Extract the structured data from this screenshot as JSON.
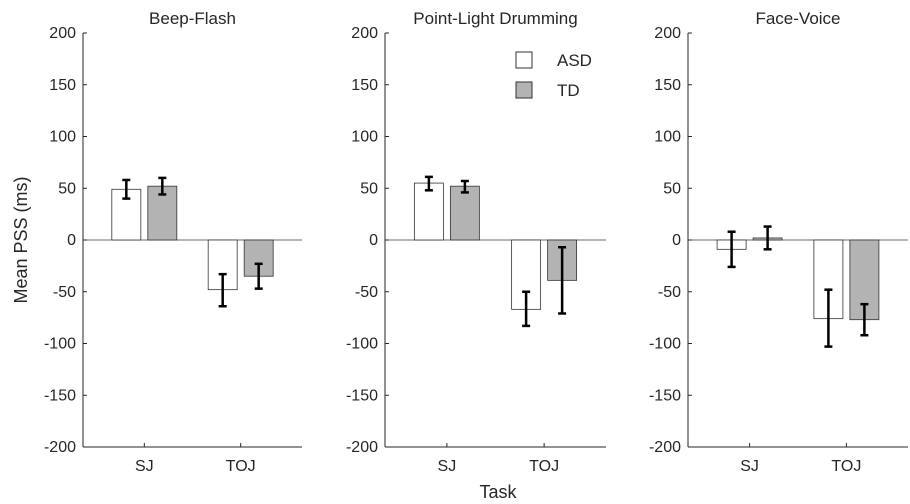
{
  "chart_data": {
    "type": "bar",
    "ylabel": "Mean PSS (ms)",
    "xlabel": "Task",
    "ylim": [
      -200,
      200
    ],
    "yticks": [
      -200,
      -150,
      -100,
      -50,
      0,
      50,
      100,
      150,
      200
    ],
    "categories": [
      "SJ",
      "TOJ"
    ],
    "legend": {
      "placement": "top-right of middle panel",
      "entries": [
        {
          "name": "ASD",
          "color": "#ffffff"
        },
        {
          "name": "TD",
          "color": "#b3b3b3"
        }
      ]
    },
    "panels": [
      {
        "title": "Beep-Flash",
        "series": [
          {
            "name": "ASD",
            "values": [
              49,
              -48
            ],
            "error_low": [
              40,
              -64
            ],
            "error_high": [
              58,
              -33
            ]
          },
          {
            "name": "TD",
            "values": [
              52,
              -35
            ],
            "error_low": [
              44,
              -47
            ],
            "error_high": [
              60,
              -23
            ]
          }
        ]
      },
      {
        "title": "Point-Light Drumming",
        "series": [
          {
            "name": "ASD",
            "values": [
              55,
              -67
            ],
            "error_low": [
              48,
              -83
            ],
            "error_high": [
              61,
              -50
            ]
          },
          {
            "name": "TD",
            "values": [
              52,
              -39
            ],
            "error_low": [
              46,
              -71
            ],
            "error_high": [
              57,
              -7
            ]
          }
        ]
      },
      {
        "title": "Face-Voice",
        "series": [
          {
            "name": "ASD",
            "values": [
              -9,
              -76
            ],
            "error_low": [
              -26,
              -103
            ],
            "error_high": [
              8,
              -48
            ]
          },
          {
            "name": "TD",
            "values": [
              2,
              -77
            ],
            "error_low": [
              -9,
              -92
            ],
            "error_high": [
              13,
              -62
            ]
          }
        ]
      }
    ]
  }
}
